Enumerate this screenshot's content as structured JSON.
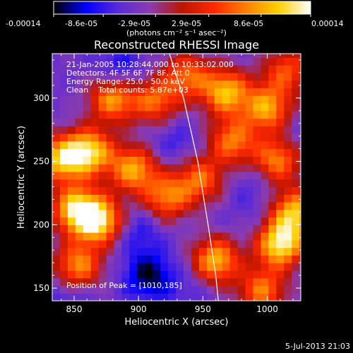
{
  "colorbar": {
    "ticks": [
      "-0.00014",
      "-8.6e-05",
      "-2.9e-05",
      "2.9e-05",
      "8.6e-05",
      "0.00014"
    ],
    "values": [
      -0.00014,
      -8.6e-05,
      -2.9e-05,
      2.9e-05,
      8.6e-05,
      0.00014
    ],
    "range": [
      -0.00014,
      0.00014
    ],
    "unit_label": "(photons cm⁻² s⁻¹ asec⁻²)",
    "stops": [
      "#000000",
      "#0000ff",
      "#5a2ad8",
      "#8a3cb0",
      "#bb1500",
      "#ff2800",
      "#ff8000",
      "#ffd000",
      "#ffffff"
    ]
  },
  "annotations": [
    "21-Jan-2005 10:28:44.000 to 10:33:02.000",
    "Detectors: 4F 5F 6F 7F 8F, Att 0",
    "Energy Range: 25.0 - 50.0 keV",
    "Clean    Total counts: 5.87e+03"
  ],
  "peak_label": "Position of Peak = [1010,185]",
  "timestamp": "5-Jul-2013 21:03",
  "chart_data": {
    "type": "heatmap",
    "title": "Reconstructed RHESSI Image",
    "xlabel": "Heliocentric X (arcsec)",
    "ylabel": "Heliocentric Y (arcsec)",
    "xlim": [
      833,
      1026
    ],
    "ylim": [
      140,
      335
    ],
    "xticks": [
      850,
      900,
      950,
      1000
    ],
    "yticks": [
      150,
      200,
      250,
      300
    ],
    "limb_curve": [
      [
        924,
        335
      ],
      [
        935,
        300
      ],
      [
        946,
        250
      ],
      [
        954,
        200
      ],
      [
        960,
        160
      ],
      [
        962,
        140
      ]
    ],
    "peak": [
      1010,
      185
    ],
    "blobs": [
      {
        "x": 880,
        "y": 300,
        "v": 0.0001
      },
      {
        "x": 862,
        "y": 258,
        "v": 0.00012
      },
      {
        "x": 840,
        "y": 252,
        "v": 0.00011
      },
      {
        "x": 852,
        "y": 212,
        "v": 0.00013
      },
      {
        "x": 870,
        "y": 203,
        "v": 0.00012
      },
      {
        "x": 896,
        "y": 244,
        "v": 0.0001
      },
      {
        "x": 922,
        "y": 222,
        "v": 8e-05
      },
      {
        "x": 948,
        "y": 236,
        "v": 7e-05
      },
      {
        "x": 973,
        "y": 266,
        "v": 8e-05
      },
      {
        "x": 1008,
        "y": 252,
        "v": 9e-05
      },
      {
        "x": 1000,
        "y": 292,
        "v": 0.0001
      },
      {
        "x": 968,
        "y": 305,
        "v": 0.00011
      },
      {
        "x": 960,
        "y": 172,
        "v": 0.00011
      },
      {
        "x": 1010,
        "y": 185,
        "v": 0.00014
      },
      {
        "x": 1022,
        "y": 210,
        "v": 0.00011
      },
      {
        "x": 996,
        "y": 148,
        "v": 8e-05
      },
      {
        "x": 853,
        "y": 168,
        "v": 9e-05
      },
      {
        "x": 938,
        "y": 318,
        "v": 7e-05
      },
      {
        "x": 913,
        "y": 298,
        "v": 7e-05
      },
      {
        "x": 1015,
        "y": 322,
        "v": 6e-05
      },
      {
        "x": 885,
        "y": 322,
        "v": -9e-05
      },
      {
        "x": 908,
        "y": 160,
        "v": -0.00012
      },
      {
        "x": 900,
        "y": 195,
        "v": -8e-05
      },
      {
        "x": 928,
        "y": 265,
        "v": -7e-05
      },
      {
        "x": 845,
        "y": 140,
        "v": -7e-05
      },
      {
        "x": 988,
        "y": 232,
        "v": -6e-05
      },
      {
        "x": 990,
        "y": 205,
        "v": -5e-05
      },
      {
        "x": 1018,
        "y": 268,
        "v": -6e-05
      },
      {
        "x": 940,
        "y": 150,
        "v": -6e-05
      }
    ]
  }
}
